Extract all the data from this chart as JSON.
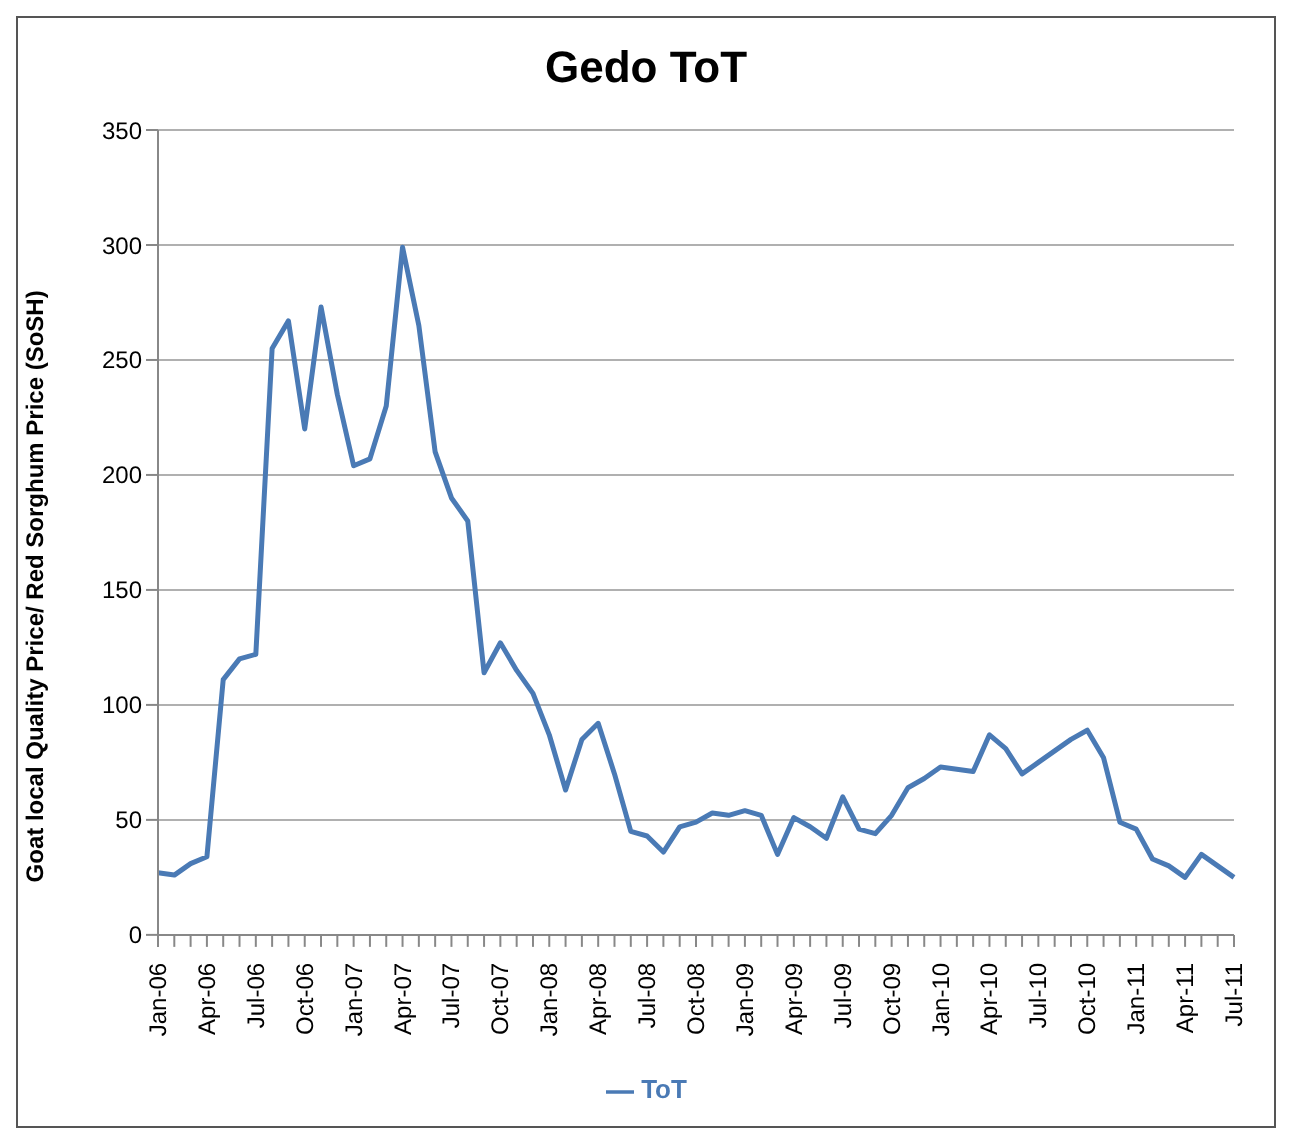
{
  "chart_data": {
    "type": "line",
    "title": "Gedo ToT",
    "ylabel": "Goat local Quality Price/ Red Sorghum Price (SoSH)",
    "categories": [
      "Jan-06",
      null,
      null,
      "Apr-06",
      null,
      null,
      "Jul-06",
      null,
      null,
      "Oct-06",
      null,
      null,
      "Jan-07",
      null,
      null,
      "Apr-07",
      null,
      null,
      "Jul-07",
      null,
      null,
      "Oct-07",
      null,
      null,
      "Jan-08",
      null,
      null,
      "Apr-08",
      null,
      null,
      "Jul-08",
      null,
      null,
      "Oct-08",
      null,
      null,
      "Jan-09",
      null,
      null,
      "Apr-09",
      null,
      null,
      "Jul-09",
      null,
      null,
      "Oct-09",
      null,
      null,
      "Jan-10",
      null,
      null,
      "Apr-10",
      null,
      null,
      "Jul-10",
      null,
      null,
      "Oct-10",
      null,
      null,
      "Jan-11",
      null,
      null,
      "Apr-11",
      null,
      null,
      "Jul-11"
    ],
    "series": [
      {
        "name": "ToT",
        "color": "#4a7ab5",
        "values": [
          27,
          26,
          31,
          34,
          111,
          120,
          122,
          255,
          267,
          220,
          273,
          235,
          204,
          207,
          230,
          299,
          265,
          210,
          190,
          180,
          114,
          127,
          115,
          105,
          87,
          63,
          85,
          92,
          70,
          45,
          43,
          36,
          47,
          49,
          53,
          52,
          54,
          52,
          35,
          51,
          47,
          42,
          60,
          46,
          44,
          52,
          64,
          68,
          73,
          72,
          71,
          87,
          81,
          70,
          75,
          80,
          85,
          89,
          77,
          49,
          46,
          33,
          30,
          25,
          35,
          30,
          25
        ]
      }
    ],
    "ylim": [
      0,
      350
    ],
    "yticks": [
      0,
      50,
      100,
      150,
      200,
      250,
      300,
      350
    ],
    "grid": "y",
    "legend": "bottom",
    "marker": "none",
    "line_style": "solid"
  }
}
